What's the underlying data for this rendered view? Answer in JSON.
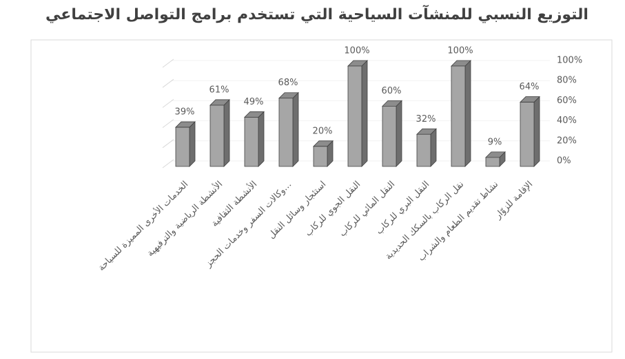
{
  "chart_data": {
    "type": "bar3d",
    "title": "التوزيع النسبي للمنشآت السياحية التي تستخدم برامج التواصل الاجتماعي",
    "categories": [
      "الخدمات الأخرى المميزة للسياحة",
      "الأنشطة الرياضية والترفيهية",
      "الأنشطة الثقافية",
      "وكالات السفر وخدمات الحجز…",
      "استئجار وسائل النقل",
      "النقل الجوي للركاب",
      "النقل المائي للركاب",
      "النقل البري للركاب",
      "نقل الركاب بالسكك الحديدية",
      "نشاط تقديم الطعام والشراب",
      "الإقامة للزوّار"
    ],
    "values": [
      39,
      61,
      49,
      68,
      20,
      100,
      60,
      32,
      100,
      9,
      64
    ],
    "value_labels": [
      "39%",
      "61%",
      "49%",
      "68%",
      "20%",
      "100%",
      "60%",
      "32%",
      "100%",
      "9%",
      "64%"
    ],
    "color": "#a6a6a6",
    "ylim": [
      0,
      100
    ],
    "yticks": [
      {
        "value": 0,
        "label": "0%"
      },
      {
        "value": 20,
        "label": "20%"
      },
      {
        "value": 40,
        "label": "40%"
      },
      {
        "value": 60,
        "label": "60%"
      },
      {
        "value": 80,
        "label": "80%"
      },
      {
        "value": 100,
        "label": "100%"
      }
    ],
    "grid": true
  }
}
